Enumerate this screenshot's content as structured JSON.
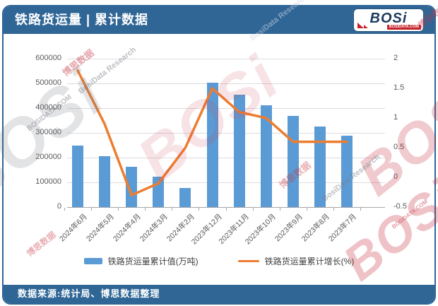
{
  "header": {
    "title": "铁路货运量 | 累计数据",
    "logo": {
      "name": "BOSi",
      "domain": "BOSIDATA.COM"
    }
  },
  "chart_data": {
    "type": "bar+line",
    "categories": [
      "2024年6月",
      "2024年5月",
      "2024年4月",
      "2024年3月",
      "2024年2月",
      "2023年12月",
      "2023年11月",
      "2023年10月",
      "2023年9月",
      "2023年8月",
      "2023年7月"
    ],
    "series": [
      {
        "name": "铁路货运量累计值(万吨)",
        "type": "bar",
        "axis": "left",
        "color": "#5B9BD5",
        "values": [
          250000,
          206000,
          162000,
          122000,
          76000,
          502000,
          455000,
          412000,
          368000,
          326000,
          288000
        ]
      },
      {
        "name": "铁路货运量累计增长(%)",
        "type": "line",
        "axis": "right",
        "color": "#ED7D31",
        "values": [
          1.8,
          0.9,
          -0.3,
          -0.1,
          0.5,
          1.5,
          1.1,
          1.0,
          0.6,
          0.6,
          0.6
        ]
      }
    ],
    "left_axis": {
      "min": 0,
      "max": 600000,
      "step": 100000,
      "ticks": [
        "0",
        "100000",
        "200000",
        "300000",
        "400000",
        "500000",
        "600000"
      ]
    },
    "right_axis": {
      "min": -0.5,
      "max": 2,
      "step": 0.5,
      "ticks": [
        "-0.5",
        "0",
        "0.5",
        "1",
        "1.5",
        "2"
      ]
    },
    "grid": true,
    "legend_position": "bottom",
    "title": "铁路货运量 | 累计数据"
  },
  "footer": {
    "source": "数据来源:统计局、博思数据整理"
  },
  "watermarks": {
    "logo_text": "BOSi",
    "brand_cn": "博思数据",
    "brand_en": "BosiData Research",
    "domain": "BOSIDATA.COM"
  },
  "colors": {
    "header_bg": "#2F6696",
    "bar": "#5B9BD5",
    "line": "#ED7D31",
    "logo_red": "#C4242C",
    "logo_navy": "#1B3A5E"
  }
}
